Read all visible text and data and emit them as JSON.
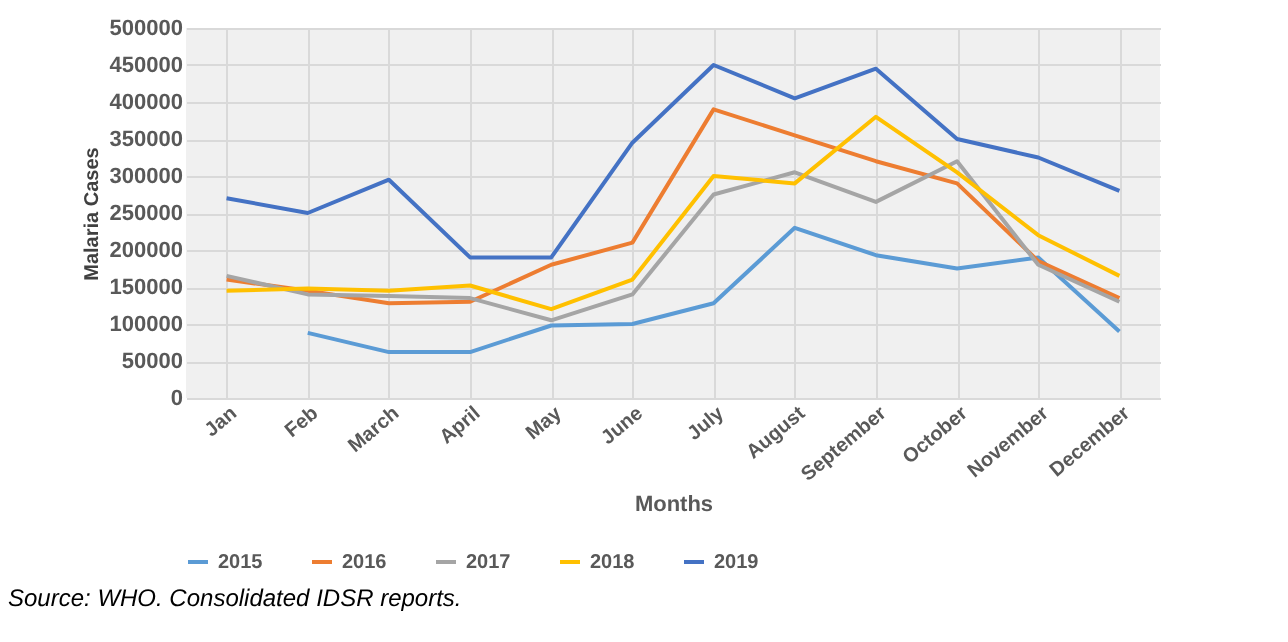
{
  "chart_data": {
    "type": "line",
    "xlabel": "Months",
    "ylabel": "Malaria Cases",
    "categories": [
      "Jan",
      "Feb",
      "March",
      "April",
      "May",
      "June",
      "July",
      "August",
      "September",
      "October",
      "November",
      "December"
    ],
    "series": [
      {
        "name": "2015",
        "color": "#5b9bd5",
        "values": [
          null,
          88000,
          62000,
          62000,
          98000,
          100000,
          128000,
          230000,
          193000,
          175000,
          190000,
          90000
        ]
      },
      {
        "name": "2016",
        "color": "#ed7d31",
        "values": [
          160000,
          145000,
          128000,
          130000,
          180000,
          210000,
          390000,
          355000,
          320000,
          290000,
          185000,
          135000
        ]
      },
      {
        "name": "2017",
        "color": "#a5a5a5",
        "values": [
          165000,
          140000,
          138000,
          135000,
          105000,
          140000,
          275000,
          305000,
          265000,
          320000,
          180000,
          130000
        ]
      },
      {
        "name": "2018",
        "color": "#ffc000",
        "values": [
          145000,
          148000,
          145000,
          152000,
          120000,
          160000,
          300000,
          290000,
          380000,
          305000,
          220000,
          165000
        ]
      },
      {
        "name": "2019",
        "color": "#4472c4",
        "values": [
          270000,
          250000,
          295000,
          190000,
          190000,
          345000,
          450000,
          405000,
          445000,
          350000,
          325000,
          280000
        ]
      }
    ],
    "ylim": [
      0,
      500000
    ],
    "yticks": [
      0,
      50000,
      100000,
      150000,
      200000,
      250000,
      300000,
      350000,
      400000,
      450000,
      500000
    ],
    "grid": true,
    "legend": "bottom",
    "marker": "none",
    "line_style": "solid",
    "annotations": [
      "Source: WHO. Consolidated IDSR reports."
    ]
  }
}
